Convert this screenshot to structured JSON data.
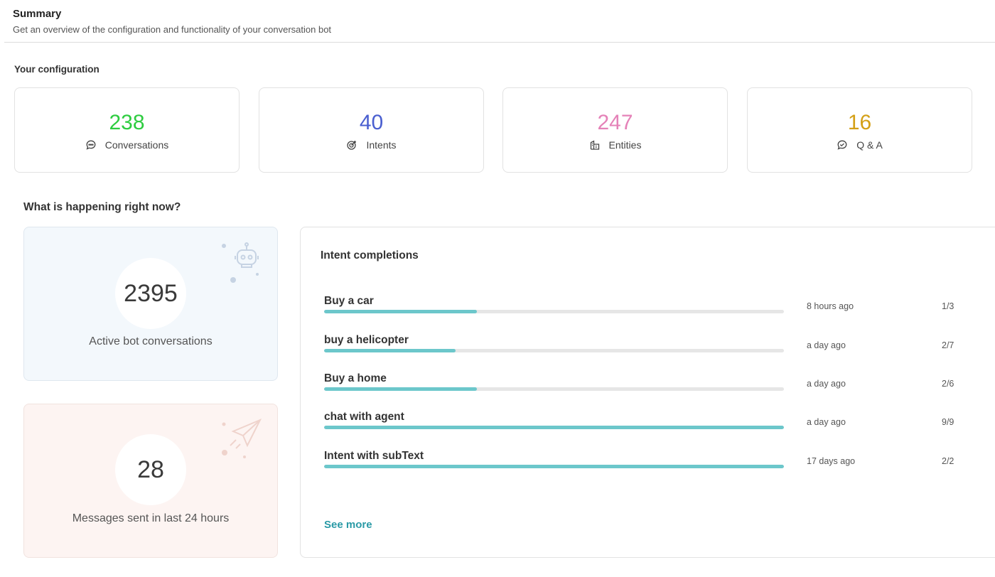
{
  "header": {
    "title": "Summary",
    "subtitle": "Get an overview of the configuration and functionality of your conversation bot"
  },
  "config": {
    "title": "Your configuration",
    "stats": [
      {
        "value": "238",
        "label": "Conversations",
        "color": "#2ecc40",
        "icon": "chat-icon"
      },
      {
        "value": "40",
        "label": "Intents",
        "color": "#4a5fd0",
        "icon": "target-icon"
      },
      {
        "value": "247",
        "label": "Entities",
        "color": "#e582b8",
        "icon": "entities-icon"
      },
      {
        "value": "16",
        "label": "Q & A",
        "color": "#d4a017",
        "icon": "qa-icon"
      }
    ]
  },
  "now": {
    "title": "What is happening right now?",
    "active": {
      "value": "2395",
      "label": "Active bot conversations",
      "icon": "robot-icon"
    },
    "messages": {
      "value": "28",
      "label": "Messages sent in last 24 hours",
      "icon": "paper-plane-icon"
    }
  },
  "completions": {
    "title": "Intent completions",
    "items": [
      {
        "name": "Buy a car",
        "time": "8 hours ago",
        "count": "1/3",
        "progress": 0.333
      },
      {
        "name": "buy a helicopter",
        "time": "a day ago",
        "count": "2/7",
        "progress": 0.286
      },
      {
        "name": "Buy a home",
        "time": "a day ago",
        "count": "2/6",
        "progress": 0.333
      },
      {
        "name": "chat with agent",
        "time": "a day ago",
        "count": "9/9",
        "progress": 1.0
      },
      {
        "name": "Intent with subText",
        "time": "17 days ago",
        "count": "2/2",
        "progress": 1.0
      }
    ],
    "see_more": "See more",
    "bar_color": "#6cc7cb"
  }
}
